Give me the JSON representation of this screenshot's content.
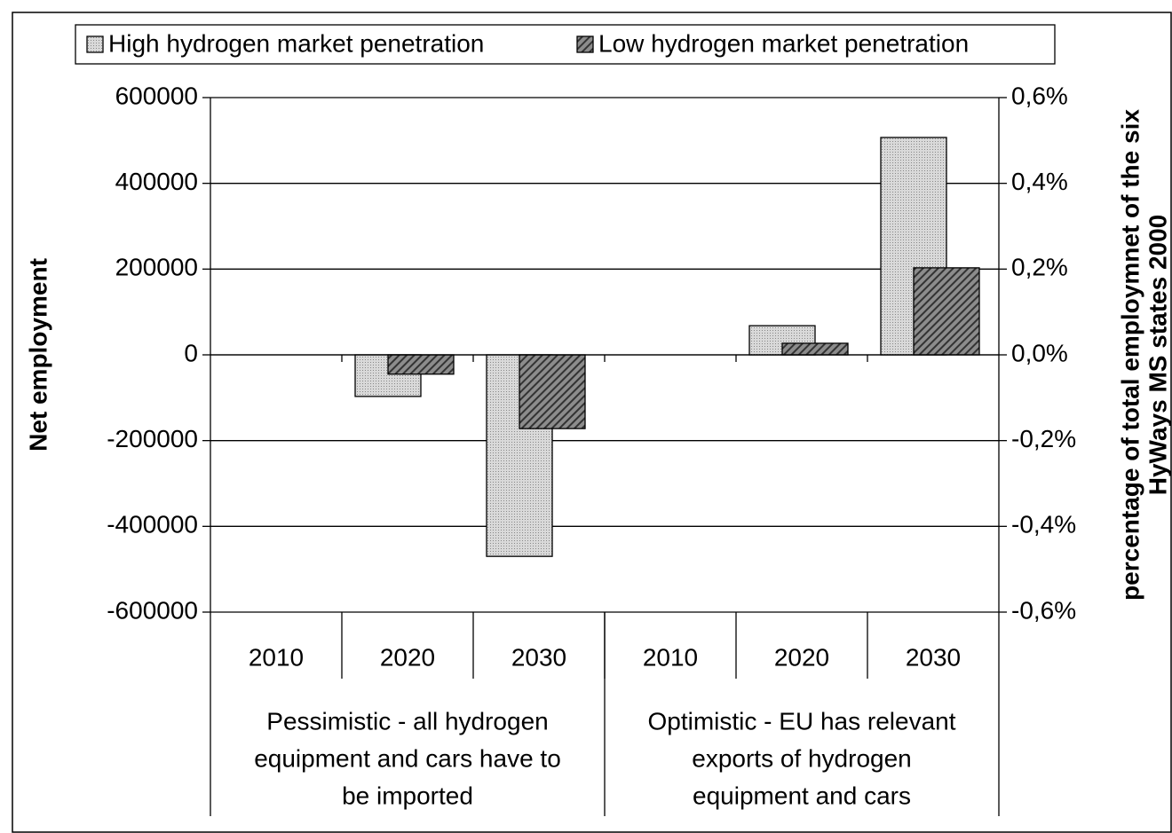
{
  "chart_data": {
    "type": "bar",
    "ylabel": "Net employment",
    "y2label": [
      "percentage of total employmnet of the six",
      "HyWays MS states 2000"
    ],
    "groups": [
      {
        "label": [
          "Pessimistic - all hydrogen",
          "equipment and cars have to",
          "be imported"
        ],
        "categories": [
          "2010",
          "2020",
          "2030"
        ]
      },
      {
        "label": [
          "Optimistic - EU has relevant",
          "exports of hydrogen",
          "equipment and cars"
        ],
        "categories": [
          "2010",
          "2020",
          "2030"
        ]
      }
    ],
    "series": [
      {
        "name": "High hydrogen market penetration",
        "color": "#d9d9d9",
        "pattern": "dots",
        "values": [
          0,
          -97000,
          -470000,
          0,
          68000,
          507000
        ]
      },
      {
        "name": "Low hydrogen market penetration",
        "color": "#8c8c8c",
        "pattern": "hatch",
        "values": [
          0,
          -45000,
          -172000,
          0,
          27000,
          203000
        ]
      }
    ],
    "ylim": [
      -600000,
      600000
    ],
    "yticks": [
      -600000,
      -400000,
      -200000,
      0,
      200000,
      400000,
      600000
    ],
    "y2lim": [
      -0.6,
      0.6
    ],
    "y2ticks": [
      {
        "value": -0.6,
        "label": "-0,6%"
      },
      {
        "value": -0.4,
        "label": "-0,4%"
      },
      {
        "value": -0.2,
        "label": "-0,2%"
      },
      {
        "value": 0,
        "label": "0,0%"
      },
      {
        "value": 0.2,
        "label": "0,2%"
      },
      {
        "value": 0.4,
        "label": "0,4%"
      },
      {
        "value": 0.6,
        "label": "0,6%"
      }
    ],
    "grid": true,
    "legend": "top"
  }
}
